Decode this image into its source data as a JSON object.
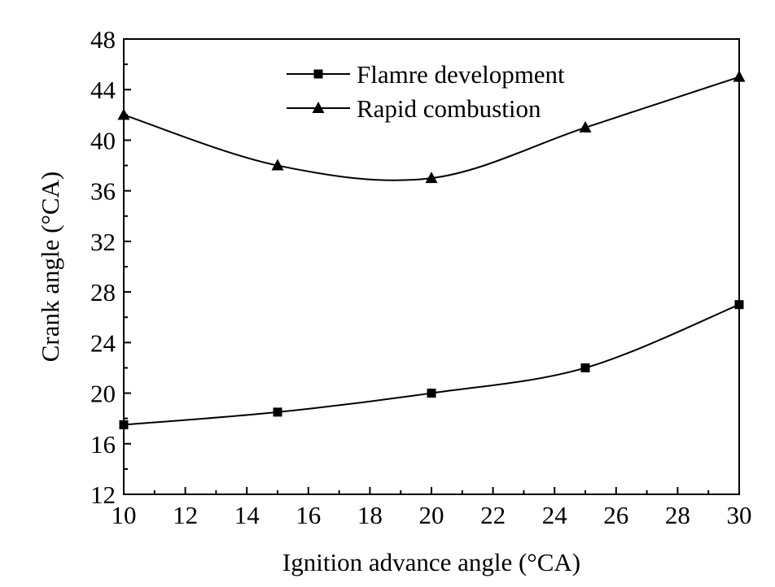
{
  "chart_data": {
    "type": "line",
    "title": "",
    "xlabel": "Ignition advance angle (°CA)",
    "ylabel": "Crank angle (°CA)",
    "xlim": [
      10,
      30
    ],
    "ylim": [
      12,
      48
    ],
    "xticks": [
      10,
      12,
      14,
      16,
      18,
      20,
      22,
      24,
      26,
      28,
      30
    ],
    "yticks": [
      12,
      16,
      20,
      24,
      28,
      32,
      36,
      40,
      44,
      48
    ],
    "x": [
      10,
      15,
      20,
      25,
      30
    ],
    "series": [
      {
        "name": "Flamre development",
        "marker": "square",
        "values": [
          17.5,
          18.5,
          20,
          22,
          27
        ]
      },
      {
        "name": "Rapid combustion",
        "marker": "triangle",
        "values": [
          42,
          38,
          37,
          41,
          45
        ]
      }
    ],
    "legend_position": "top-center",
    "grid": false,
    "color": "#000000"
  }
}
